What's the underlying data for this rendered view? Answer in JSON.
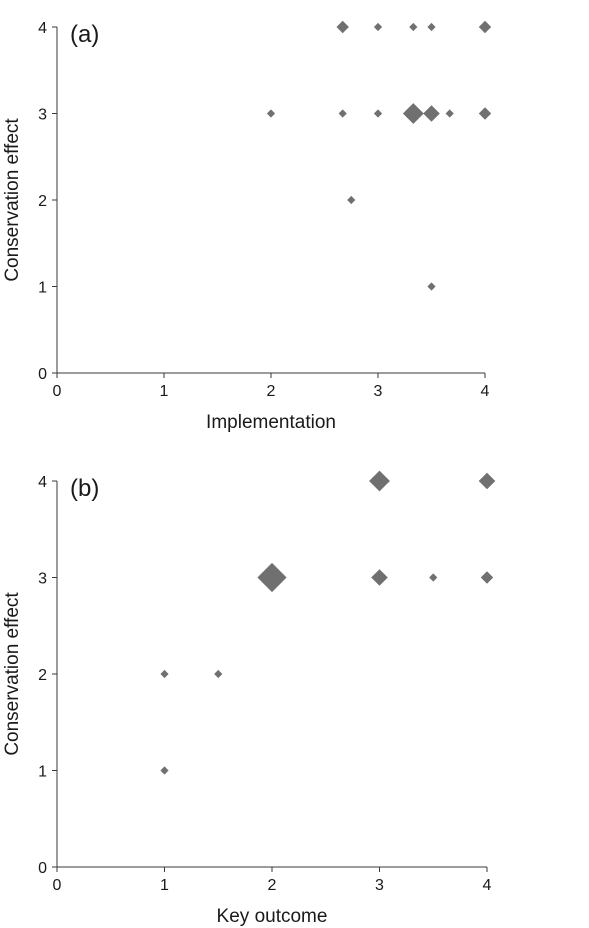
{
  "chart_data": [
    {
      "type": "scatter",
      "panel_label": "(a)",
      "xlabel": "Implementation",
      "ylabel": "Conservation effect",
      "xlim": [
        0,
        4
      ],
      "ylim": [
        0,
        4
      ],
      "x_ticks": [
        "0",
        "1",
        "2",
        "3",
        "4"
      ],
      "y_ticks": [
        "0",
        "1",
        "2",
        "3",
        "4"
      ],
      "marker": "diamond",
      "marker_color": "#707070",
      "grid": false,
      "points": [
        {
          "x": 2.67,
          "y": 4,
          "size": 2
        },
        {
          "x": 3.0,
          "y": 4,
          "size": 1
        },
        {
          "x": 3.33,
          "y": 4,
          "size": 1
        },
        {
          "x": 3.5,
          "y": 4,
          "size": 1
        },
        {
          "x": 4.0,
          "y": 4,
          "size": 2
        },
        {
          "x": 2.0,
          "y": 3,
          "size": 1
        },
        {
          "x": 2.67,
          "y": 3,
          "size": 1
        },
        {
          "x": 3.0,
          "y": 3,
          "size": 1
        },
        {
          "x": 3.33,
          "y": 3,
          "size": 4
        },
        {
          "x": 3.5,
          "y": 3,
          "size": 3
        },
        {
          "x": 3.67,
          "y": 3,
          "size": 1
        },
        {
          "x": 4.0,
          "y": 3,
          "size": 2
        },
        {
          "x": 2.75,
          "y": 2,
          "size": 1
        },
        {
          "x": 3.5,
          "y": 1,
          "size": 1
        }
      ]
    },
    {
      "type": "scatter",
      "panel_label": "(b)",
      "xlabel": "Key outcome",
      "ylabel": "Conservation effect",
      "xlim": [
        0,
        4
      ],
      "ylim": [
        0,
        4
      ],
      "x_ticks": [
        "0",
        "1",
        "2",
        "3",
        "4"
      ],
      "y_ticks": [
        "0",
        "1",
        "2",
        "3",
        "4"
      ],
      "marker": "diamond",
      "marker_color": "#707070",
      "grid": false,
      "points": [
        {
          "x": 3.0,
          "y": 4,
          "size": 4
        },
        {
          "x": 4.0,
          "y": 4,
          "size": 3
        },
        {
          "x": 2.0,
          "y": 3,
          "size": 6
        },
        {
          "x": 3.0,
          "y": 3,
          "size": 3
        },
        {
          "x": 3.5,
          "y": 3,
          "size": 1
        },
        {
          "x": 4.0,
          "y": 3,
          "size": 2
        },
        {
          "x": 1.0,
          "y": 2,
          "size": 1
        },
        {
          "x": 1.5,
          "y": 2,
          "size": 1
        },
        {
          "x": 1.0,
          "y": 1,
          "size": 1
        }
      ]
    }
  ]
}
